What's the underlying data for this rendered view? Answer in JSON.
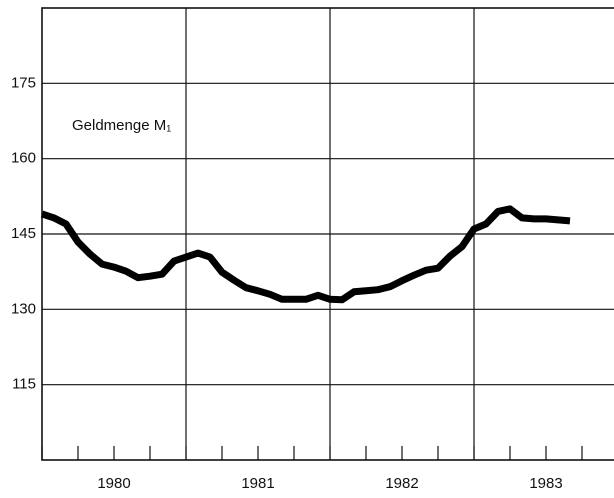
{
  "chart_data": {
    "type": "line",
    "title": "Geldmenge M₁",
    "x": [
      1980,
      1980.0833,
      1980.1667,
      1980.25,
      1980.3333,
      1980.4167,
      1980.5,
      1980.5833,
      1980.6667,
      1980.75,
      1980.8333,
      1980.9167,
      1981,
      1981.0833,
      1981.1667,
      1981.25,
      1981.3333,
      1981.4167,
      1981.5,
      1981.5833,
      1981.6667,
      1981.75,
      1981.8333,
      1981.9167,
      1982,
      1982.0833,
      1982.1667,
      1982.25,
      1982.3333,
      1982.4167,
      1982.5,
      1982.5833,
      1982.6667,
      1982.75,
      1982.8333,
      1982.9167,
      1983,
      1983.0833,
      1983.1667,
      1983.25,
      1983.3333,
      1983.4167,
      1983.5,
      1983.5833,
      1983.6667
    ],
    "series": [
      {
        "name": "Geldmenge M₁",
        "color": "#000000",
        "values": [
          149,
          148.2,
          147,
          143.4,
          141,
          139,
          138.4,
          137.6,
          136.3,
          136.6,
          137,
          139.6,
          140.4,
          141.2,
          140.4,
          137.4,
          135.8,
          134.3,
          133.7,
          133,
          132,
          132,
          132,
          132.8,
          132,
          131.9,
          133.5,
          133.7,
          133.9,
          134.5,
          135.7,
          136.8,
          137.8,
          138.2,
          140.6,
          142.5,
          146,
          147,
          149.5,
          150,
          148.2,
          148,
          148,
          147.8,
          147.6
        ]
      }
    ],
    "xlim": [
      1980,
      1984
    ],
    "xticks": [
      1981,
      1982,
      1983
    ],
    "x_labels": [
      {
        "value": 1980.5,
        "label": "1980"
      },
      {
        "value": 1981.5,
        "label": "1981"
      },
      {
        "value": 1982.5,
        "label": "1982"
      },
      {
        "value": 1983.5,
        "label": "1983"
      }
    ],
    "ylim": [
      100,
      190
    ],
    "yticks": [
      115,
      130,
      145,
      160,
      175
    ],
    "grid": true
  }
}
